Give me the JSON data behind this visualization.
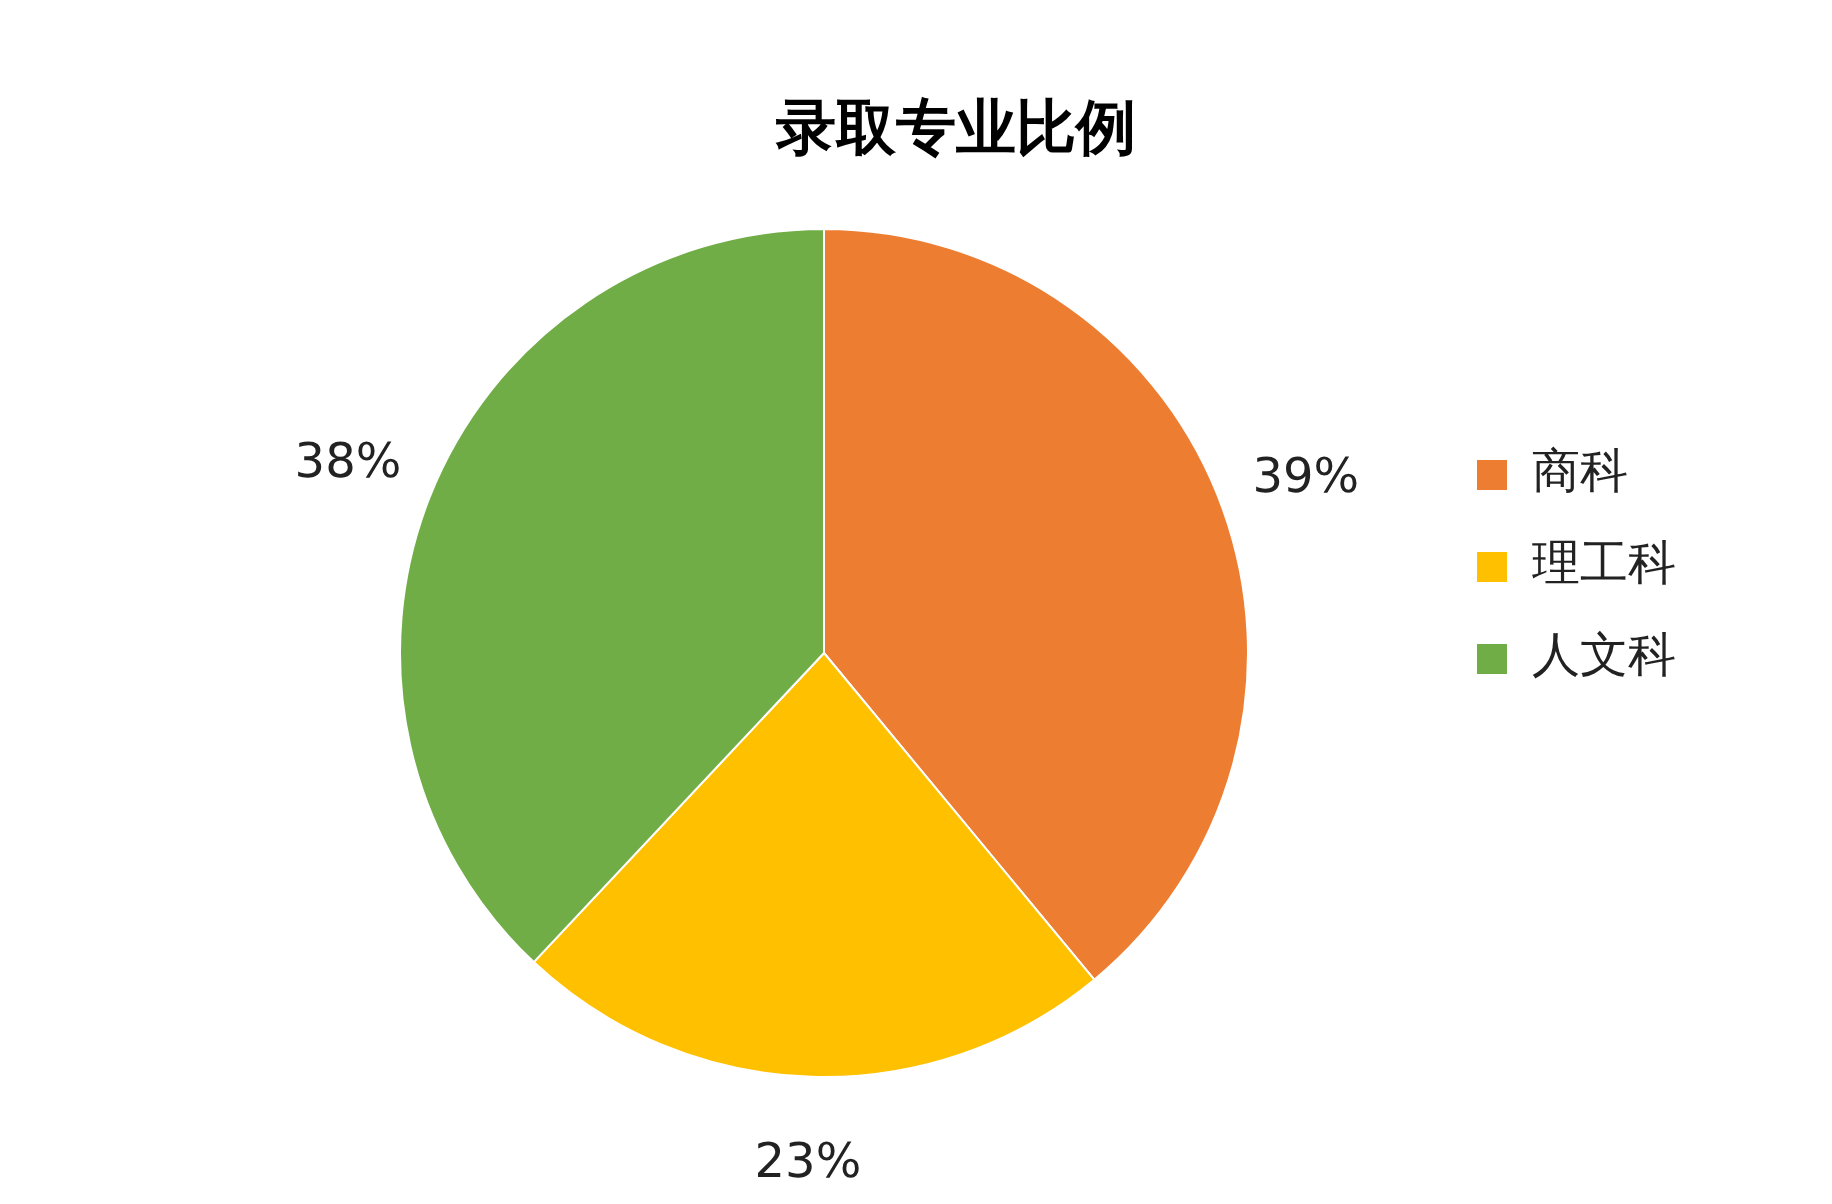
{
  "chart_data": {
    "type": "pie",
    "title": "录取专业比例",
    "categories": [
      "商科",
      "理工科",
      "人文科"
    ],
    "values": [
      39,
      23,
      38
    ],
    "colors": [
      "#ed7d31",
      "#ffc000",
      "#70ad47"
    ],
    "value_labels": [
      "39%",
      "23%",
      "38%"
    ],
    "legend": "right"
  }
}
